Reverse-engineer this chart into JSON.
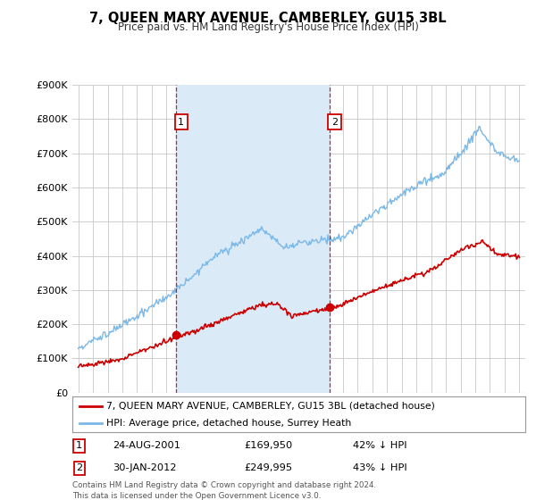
{
  "title": "7, QUEEN MARY AVENUE, CAMBERLEY, GU15 3BL",
  "subtitle": "Price paid vs. HM Land Registry's House Price Index (HPI)",
  "legend_line1": "7, QUEEN MARY AVENUE, CAMBERLEY, GU15 3BL (detached house)",
  "legend_line2": "HPI: Average price, detached house, Surrey Heath",
  "footnote": "Contains HM Land Registry data © Crown copyright and database right 2024.\nThis data is licensed under the Open Government Licence v3.0.",
  "sale1_label": "1",
  "sale1_date": "24-AUG-2001",
  "sale1_price": "£169,950",
  "sale1_hpi": "42% ↓ HPI",
  "sale2_label": "2",
  "sale2_date": "30-JAN-2012",
  "sale2_price": "£249,995",
  "sale2_hpi": "43% ↓ HPI",
  "hpi_color": "#7ab8e8",
  "sale_color": "#cc0000",
  "shade_color": "#daeaf7",
  "grid_color": "#c8c8c8",
  "bg_color": "#ffffff",
  "ylim": [
    0,
    900000
  ],
  "yticks": [
    0,
    100000,
    200000,
    300000,
    400000,
    500000,
    600000,
    700000,
    800000,
    900000
  ],
  "sale1_x": 2001.646,
  "sale1_y": 169950,
  "sale2_x": 2012.08,
  "sale2_y": 249995,
  "xmin": 1994.6,
  "xmax": 2025.4
}
